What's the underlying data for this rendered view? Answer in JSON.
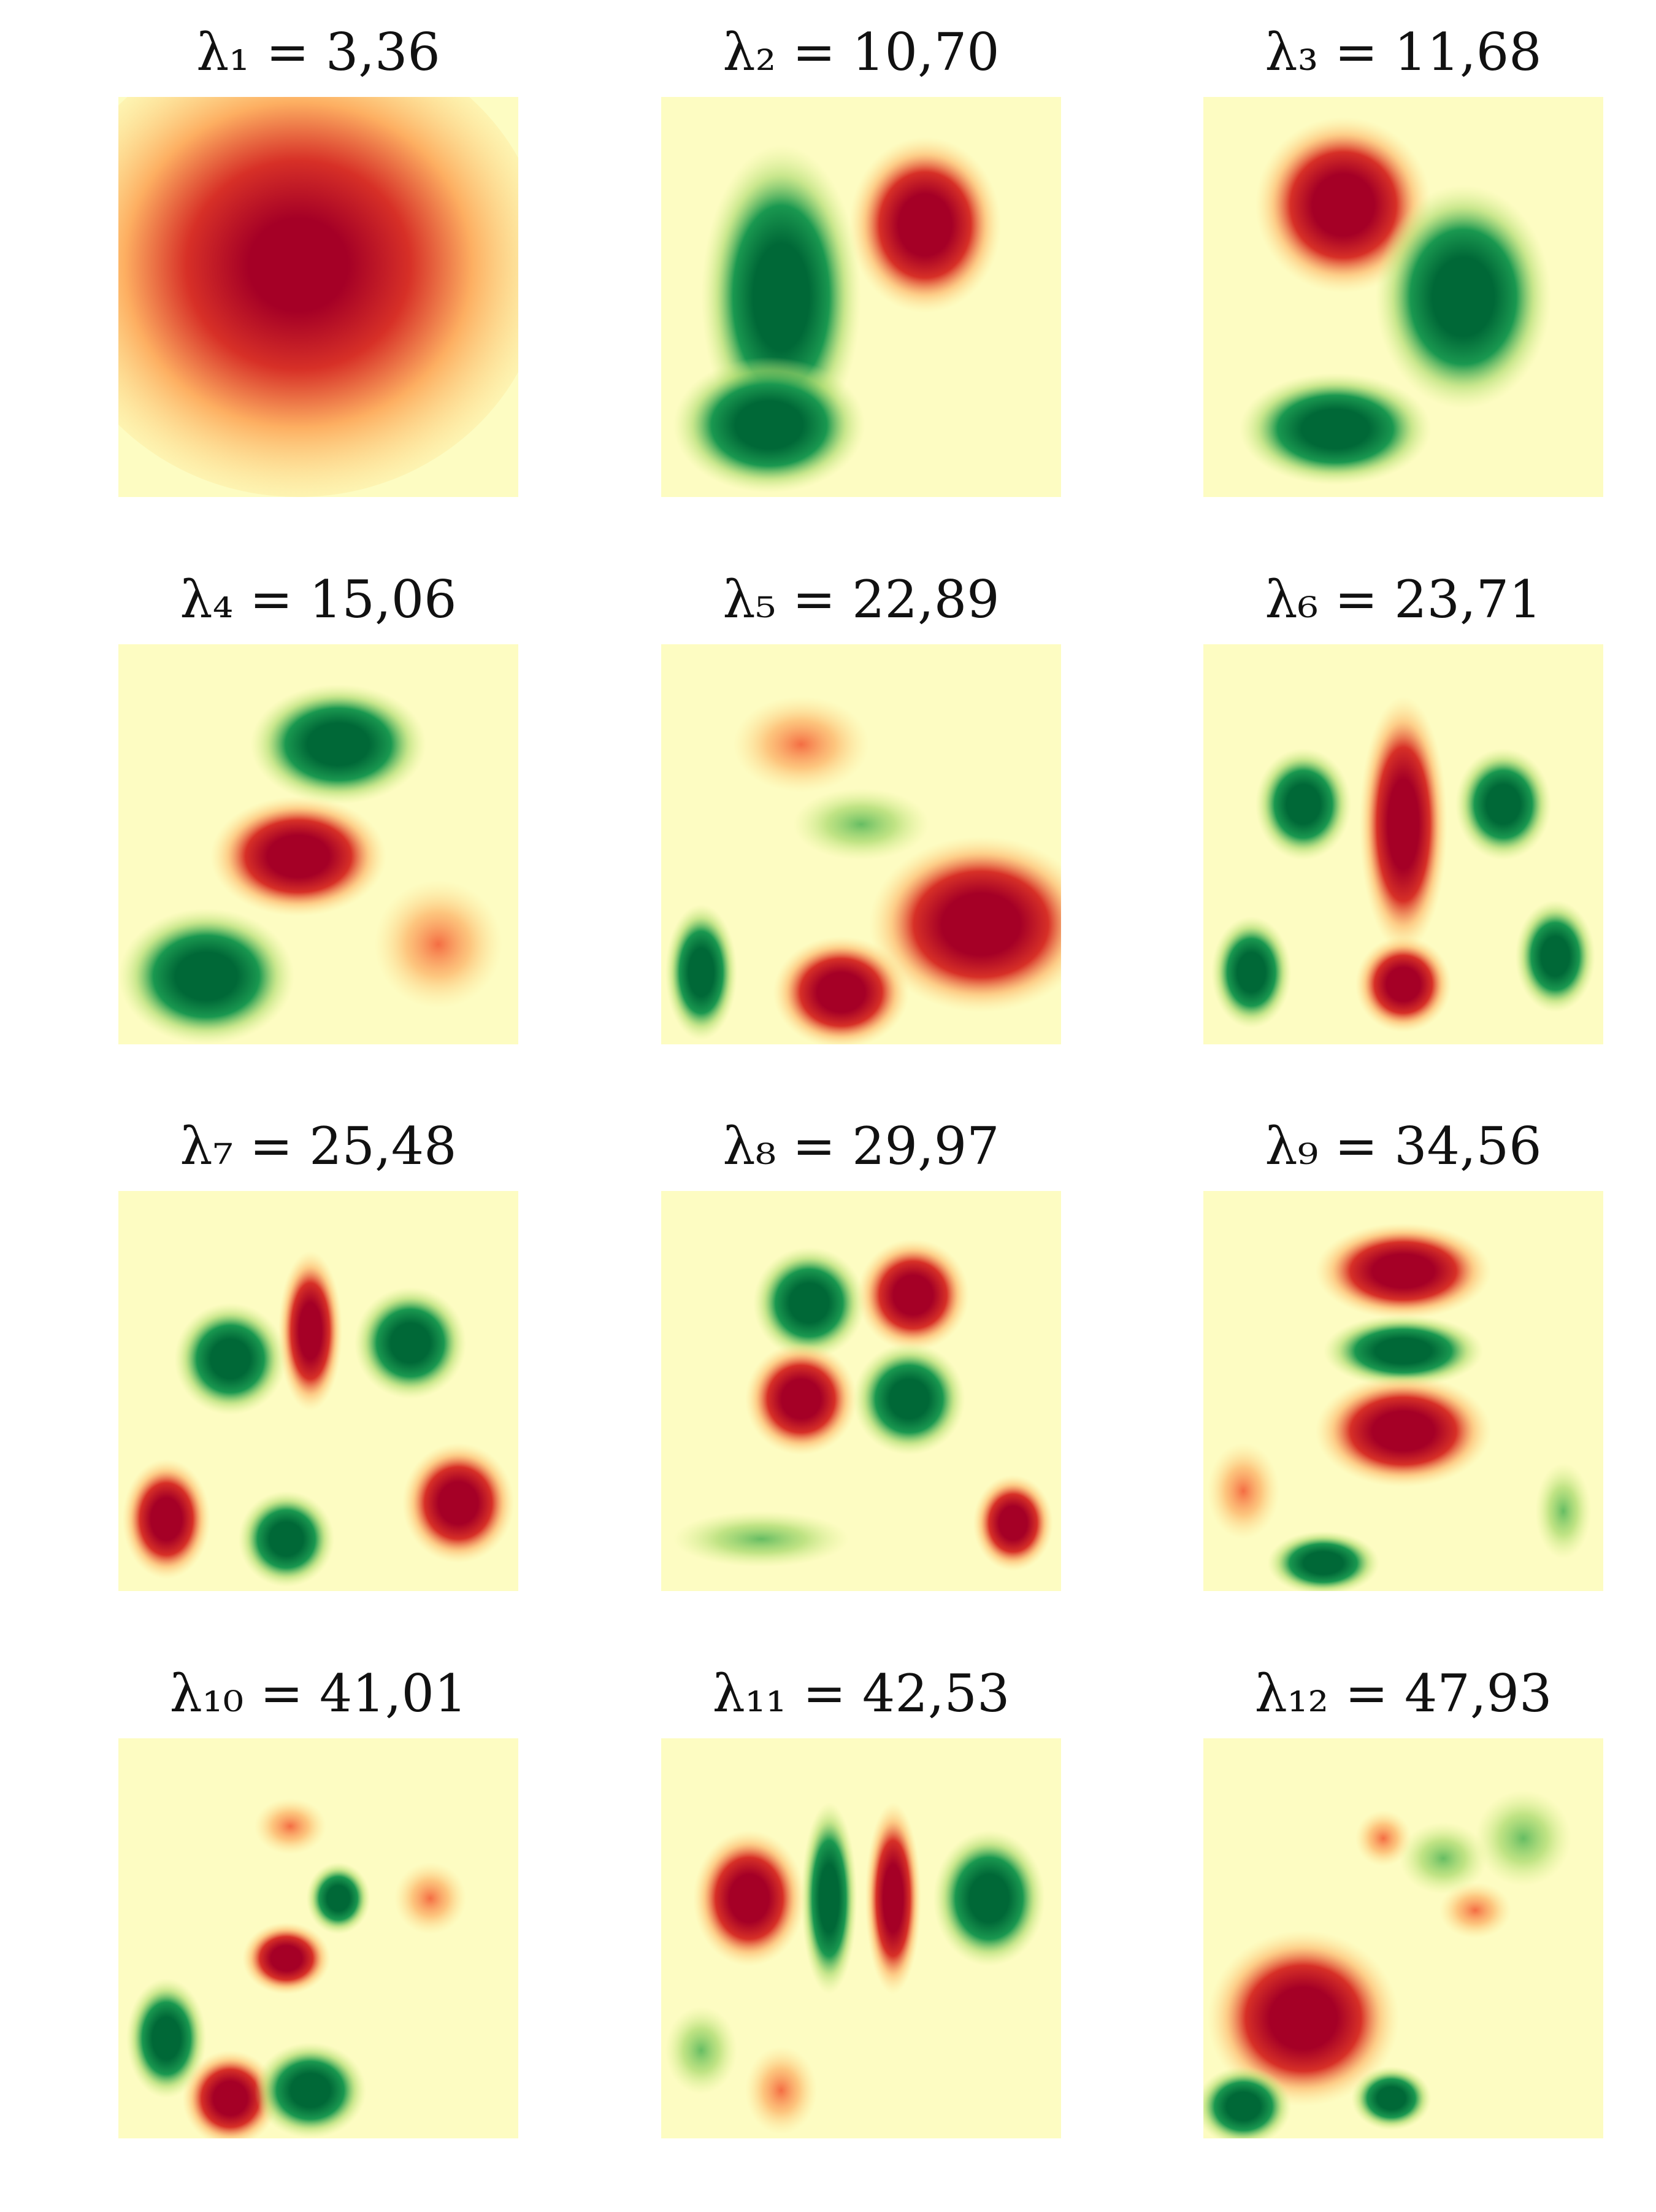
{
  "panels": [
    {
      "title": "λ₁ = 3,36"
    },
    {
      "title": "λ₂ = 10,70"
    },
    {
      "title": "λ₃ = 11,68"
    },
    {
      "title": "λ₄ = 15,06"
    },
    {
      "title": "λ₅ = 22,89"
    },
    {
      "title": "λ₆ = 23,71"
    },
    {
      "title": "λ₇ = 25,48"
    },
    {
      "title": "λ₈ = 29,97"
    },
    {
      "title": "λ₉ = 34,56"
    },
    {
      "title": "λ₁₀ = 41,01"
    },
    {
      "title": "λ₁₁ = 42,53"
    },
    {
      "title": "λ₁₂ = 47,93"
    }
  ]
}
